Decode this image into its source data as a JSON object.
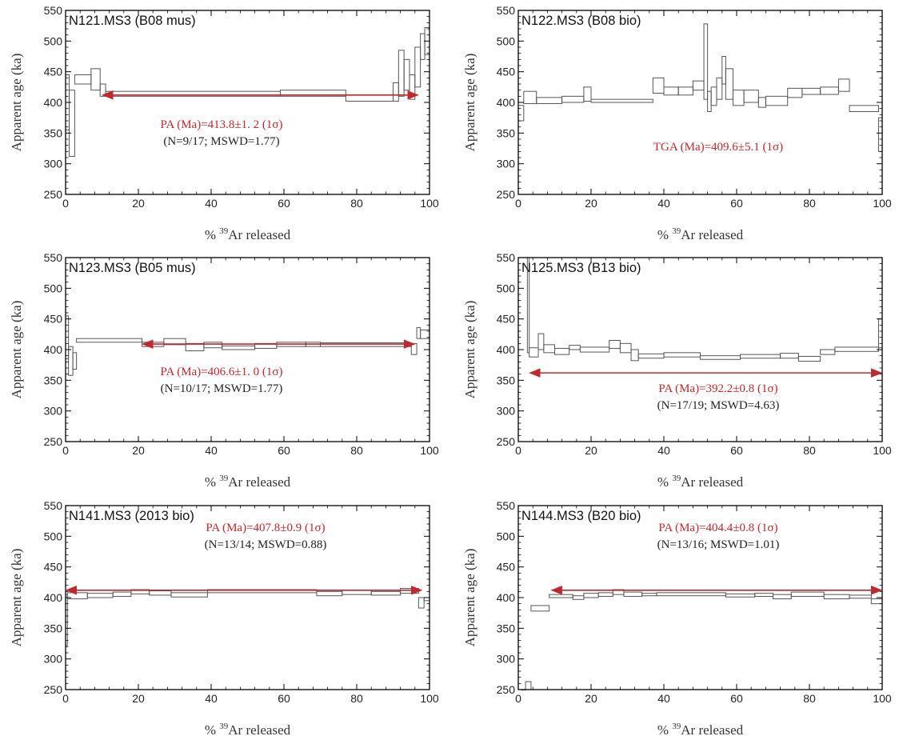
{
  "axes": {
    "xlabel_prefix": "% ",
    "xlabel_sup": "39",
    "xlabel_suffix": "Ar released",
    "ylabel": "Apparent age (ka)",
    "xlim": [
      0,
      100
    ],
    "ylim": [
      250,
      550
    ],
    "xticks": [
      0,
      20,
      40,
      60,
      80,
      100
    ],
    "yticks": [
      250,
      300,
      350,
      400,
      450,
      500,
      550
    ]
  },
  "colors": {
    "arrow": "#c0282d",
    "plateau_text": "#c0282d",
    "stats_text": "#222222",
    "steps": "#555555"
  },
  "chart_data": [
    {
      "type": "line",
      "title": "N121.MS3 (B08 mus)",
      "annotation_red": "PA (Ma)=413.8±1. 2 (1σ)",
      "annotation_black": "(N=9/17; MSWD=1.77)",
      "plateau_range": [
        10,
        97
      ],
      "steps": [
        {
          "x0": 0,
          "x1": 1,
          "lo": 355,
          "hi": 445
        },
        {
          "x0": 1,
          "x1": 2.5,
          "lo": 312,
          "hi": 420
        },
        {
          "x0": 2.5,
          "x1": 7,
          "lo": 430,
          "hi": 445
        },
        {
          "x0": 7,
          "x1": 9.5,
          "lo": 420,
          "hi": 455
        },
        {
          "x0": 9.5,
          "x1": 11,
          "lo": 410,
          "hi": 430
        },
        {
          "x0": 11,
          "x1": 59,
          "lo": 410,
          "hi": 418
        },
        {
          "x0": 59,
          "x1": 77,
          "lo": 410,
          "hi": 420
        },
        {
          "x0": 77,
          "x1": 90,
          "lo": 402,
          "hi": 412
        },
        {
          "x0": 90,
          "x1": 91.5,
          "lo": 402,
          "hi": 432
        },
        {
          "x0": 91.5,
          "x1": 93,
          "lo": 410,
          "hi": 485
        },
        {
          "x0": 93,
          "x1": 94.5,
          "lo": 420,
          "hi": 470
        },
        {
          "x0": 94.5,
          "x1": 96,
          "lo": 405,
          "hi": 445
        },
        {
          "x0": 96,
          "x1": 97.5,
          "lo": 425,
          "hi": 490
        },
        {
          "x0": 97.5,
          "x1": 98.7,
          "lo": 470,
          "hi": 512
        },
        {
          "x0": 98.7,
          "x1": 100,
          "lo": 478,
          "hi": 522
        }
      ]
    },
    {
      "type": "line",
      "title": "N122.MS3 (B08 bio)",
      "annotation_red": "TGA (Ma)=409.6±5.1 (1σ)",
      "annotation_black": "",
      "plateau_range": null,
      "steps": [
        {
          "x0": 0,
          "x1": 1.5,
          "lo": 370,
          "hi": 395
        },
        {
          "x0": 1.5,
          "x1": 5,
          "lo": 398,
          "hi": 418
        },
        {
          "x0": 5,
          "x1": 12,
          "lo": 398,
          "hi": 408
        },
        {
          "x0": 12,
          "x1": 18,
          "lo": 400,
          "hi": 410
        },
        {
          "x0": 18,
          "x1": 20,
          "lo": 402,
          "hi": 425
        },
        {
          "x0": 20,
          "x1": 37,
          "lo": 400,
          "hi": 405
        },
        {
          "x0": 37,
          "x1": 40,
          "lo": 415,
          "hi": 440
        },
        {
          "x0": 40,
          "x1": 44,
          "lo": 412,
          "hi": 425
        },
        {
          "x0": 44,
          "x1": 48,
          "lo": 412,
          "hi": 425
        },
        {
          "x0": 48,
          "x1": 51,
          "lo": 420,
          "hi": 435
        },
        {
          "x0": 51,
          "x1": 52,
          "lo": 405,
          "hi": 528
        },
        {
          "x0": 52,
          "x1": 53,
          "lo": 385,
          "hi": 418
        },
        {
          "x0": 53,
          "x1": 54.5,
          "lo": 395,
          "hi": 425
        },
        {
          "x0": 54.5,
          "x1": 56,
          "lo": 405,
          "hi": 440
        },
        {
          "x0": 56,
          "x1": 57,
          "lo": 430,
          "hi": 475
        },
        {
          "x0": 57,
          "x1": 59,
          "lo": 405,
          "hi": 455
        },
        {
          "x0": 59,
          "x1": 62,
          "lo": 395,
          "hi": 420
        },
        {
          "x0": 62,
          "x1": 66,
          "lo": 400,
          "hi": 420
        },
        {
          "x0": 66,
          "x1": 68,
          "lo": 392,
          "hi": 408
        },
        {
          "x0": 68,
          "x1": 74,
          "lo": 395,
          "hi": 410
        },
        {
          "x0": 74,
          "x1": 78,
          "lo": 408,
          "hi": 423
        },
        {
          "x0": 78,
          "x1": 83,
          "lo": 413,
          "hi": 423
        },
        {
          "x0": 83,
          "x1": 88,
          "lo": 413,
          "hi": 425
        },
        {
          "x0": 88,
          "x1": 91,
          "lo": 418,
          "hi": 438
        },
        {
          "x0": 91,
          "x1": 99,
          "lo": 385,
          "hi": 395
        },
        {
          "x0": 99,
          "x1": 100,
          "lo": 320,
          "hi": 375
        }
      ]
    },
    {
      "type": "line",
      "title": "N123.MS3 (B05 mus)",
      "annotation_red": "PA (Ma)=406.6±1. 0 (1σ)",
      "annotation_black": "(N=10/17; MSWD=1.77)",
      "plateau_range": [
        21,
        96
      ],
      "steps": [
        {
          "x0": 0,
          "x1": 0.8,
          "lo": 385,
          "hi": 455
        },
        {
          "x0": 0.8,
          "x1": 2,
          "lo": 358,
          "hi": 405
        },
        {
          "x0": 2,
          "x1": 3,
          "lo": 368,
          "hi": 395
        },
        {
          "x0": 3,
          "x1": 21,
          "lo": 412,
          "hi": 418
        },
        {
          "x0": 21,
          "x1": 27,
          "lo": 405,
          "hi": 412
        },
        {
          "x0": 27,
          "x1": 33,
          "lo": 408,
          "hi": 418
        },
        {
          "x0": 33,
          "x1": 38,
          "lo": 398,
          "hi": 410
        },
        {
          "x0": 38,
          "x1": 43,
          "lo": 403,
          "hi": 412
        },
        {
          "x0": 43,
          "x1": 52,
          "lo": 400,
          "hi": 406
        },
        {
          "x0": 52,
          "x1": 58,
          "lo": 402,
          "hi": 410
        },
        {
          "x0": 58,
          "x1": 66,
          "lo": 405,
          "hi": 412
        },
        {
          "x0": 66,
          "x1": 70,
          "lo": 405,
          "hi": 412
        },
        {
          "x0": 70,
          "x1": 95,
          "lo": 405,
          "hi": 411
        },
        {
          "x0": 95,
          "x1": 96.5,
          "lo": 392,
          "hi": 410
        },
        {
          "x0": 96.5,
          "x1": 97.5,
          "lo": 418,
          "hi": 436
        },
        {
          "x0": 97.5,
          "x1": 100,
          "lo": 418,
          "hi": 432
        }
      ]
    },
    {
      "type": "line",
      "title": "N125.MS3 (B13 bio)",
      "annotation_red": "PA (Ma)=392.2±0.8 (1σ)",
      "annotation_black": "(N=17/19; MSWD=4.63)",
      "plateau_range": [
        3,
        100
      ],
      "steps": [
        {
          "x0": 2.5,
          "x1": 3,
          "lo": 395,
          "hi": 550
        },
        {
          "x0": 3,
          "x1": 5.5,
          "lo": 388,
          "hi": 403
        },
        {
          "x0": 5.5,
          "x1": 7,
          "lo": 400,
          "hi": 426
        },
        {
          "x0": 7,
          "x1": 10,
          "lo": 395,
          "hi": 408
        },
        {
          "x0": 10,
          "x1": 14,
          "lo": 392,
          "hi": 402
        },
        {
          "x0": 14,
          "x1": 17,
          "lo": 400,
          "hi": 407
        },
        {
          "x0": 17,
          "x1": 25,
          "lo": 396,
          "hi": 404
        },
        {
          "x0": 25,
          "x1": 28,
          "lo": 402,
          "hi": 415
        },
        {
          "x0": 28,
          "x1": 31,
          "lo": 395,
          "hi": 410
        },
        {
          "x0": 31,
          "x1": 33,
          "lo": 382,
          "hi": 400
        },
        {
          "x0": 33,
          "x1": 40,
          "lo": 386,
          "hi": 393
        },
        {
          "x0": 40,
          "x1": 50,
          "lo": 388,
          "hi": 395
        },
        {
          "x0": 50,
          "x1": 61,
          "lo": 384,
          "hi": 390
        },
        {
          "x0": 61,
          "x1": 72,
          "lo": 386,
          "hi": 392
        },
        {
          "x0": 72,
          "x1": 77,
          "lo": 386,
          "hi": 394
        },
        {
          "x0": 77,
          "x1": 83,
          "lo": 381,
          "hi": 389
        },
        {
          "x0": 83,
          "x1": 87,
          "lo": 392,
          "hi": 400
        },
        {
          "x0": 87,
          "x1": 99,
          "lo": 397,
          "hi": 404
        },
        {
          "x0": 99,
          "x1": 100,
          "lo": 403,
          "hi": 450
        }
      ]
    },
    {
      "type": "line",
      "title": "N141.MS3 (2013 bio)",
      "annotation_red": "PA (Ma)=407.8±0.9 (1σ)",
      "annotation_black": "(N=13/14; MSWD=0.88)",
      "plateau_range": [
        0,
        98
      ],
      "steps": [
        {
          "x0": 0,
          "x1": 0.5,
          "lo": 322,
          "hi": 405
        },
        {
          "x0": 0.5,
          "x1": 6,
          "lo": 398,
          "hi": 408
        },
        {
          "x0": 6,
          "x1": 13,
          "lo": 400,
          "hi": 407
        },
        {
          "x0": 13,
          "x1": 18,
          "lo": 402,
          "hi": 409
        },
        {
          "x0": 18,
          "x1": 23,
          "lo": 406,
          "hi": 413
        },
        {
          "x0": 23,
          "x1": 29,
          "lo": 404,
          "hi": 411
        },
        {
          "x0": 29,
          "x1": 39,
          "lo": 401,
          "hi": 408
        },
        {
          "x0": 39,
          "x1": 69,
          "lo": 408,
          "hi": 413
        },
        {
          "x0": 69,
          "x1": 76,
          "lo": 403,
          "hi": 410
        },
        {
          "x0": 76,
          "x1": 84,
          "lo": 405,
          "hi": 412
        },
        {
          "x0": 84,
          "x1": 92,
          "lo": 404,
          "hi": 410
        },
        {
          "x0": 92,
          "x1": 97,
          "lo": 407,
          "hi": 415
        },
        {
          "x0": 97,
          "x1": 98.5,
          "lo": 383,
          "hi": 400
        },
        {
          "x0": 98.5,
          "x1": 100,
          "lo": 395,
          "hi": 400
        }
      ]
    },
    {
      "type": "line",
      "title": "N144.MS3 (B20 bio)",
      "annotation_red": "PA (Ma)=404.4±0.8 (1σ)",
      "annotation_black": "(N=13/16; MSWD=1.01)",
      "plateau_range": [
        9,
        100
      ],
      "steps": [
        {
          "x0": 1,
          "x1": 2,
          "lo": 220,
          "hi": 248
        },
        {
          "x0": 2,
          "x1": 3.5,
          "lo": 248,
          "hi": 263
        },
        {
          "x0": 3.5,
          "x1": 8.5,
          "lo": 378,
          "hi": 387
        },
        {
          "x0": 8.5,
          "x1": 15,
          "lo": 400,
          "hi": 405
        },
        {
          "x0": 15,
          "x1": 18,
          "lo": 397,
          "hi": 403
        },
        {
          "x0": 18,
          "x1": 22,
          "lo": 400,
          "hi": 407
        },
        {
          "x0": 22,
          "x1": 26,
          "lo": 402,
          "hi": 408
        },
        {
          "x0": 26,
          "x1": 29,
          "lo": 405,
          "hi": 413
        },
        {
          "x0": 29,
          "x1": 34,
          "lo": 402,
          "hi": 409
        },
        {
          "x0": 34,
          "x1": 38,
          "lo": 403,
          "hi": 407
        },
        {
          "x0": 38,
          "x1": 57,
          "lo": 403,
          "hi": 408
        },
        {
          "x0": 57,
          "x1": 65,
          "lo": 401,
          "hi": 406
        },
        {
          "x0": 65,
          "x1": 70,
          "lo": 402,
          "hi": 407
        },
        {
          "x0": 70,
          "x1": 75,
          "lo": 398,
          "hi": 405
        },
        {
          "x0": 75,
          "x1": 84,
          "lo": 402,
          "hi": 409
        },
        {
          "x0": 84,
          "x1": 91,
          "lo": 398,
          "hi": 405
        },
        {
          "x0": 91,
          "x1": 97,
          "lo": 399,
          "hi": 404
        },
        {
          "x0": 97,
          "x1": 100,
          "lo": 390,
          "hi": 398
        }
      ]
    }
  ]
}
